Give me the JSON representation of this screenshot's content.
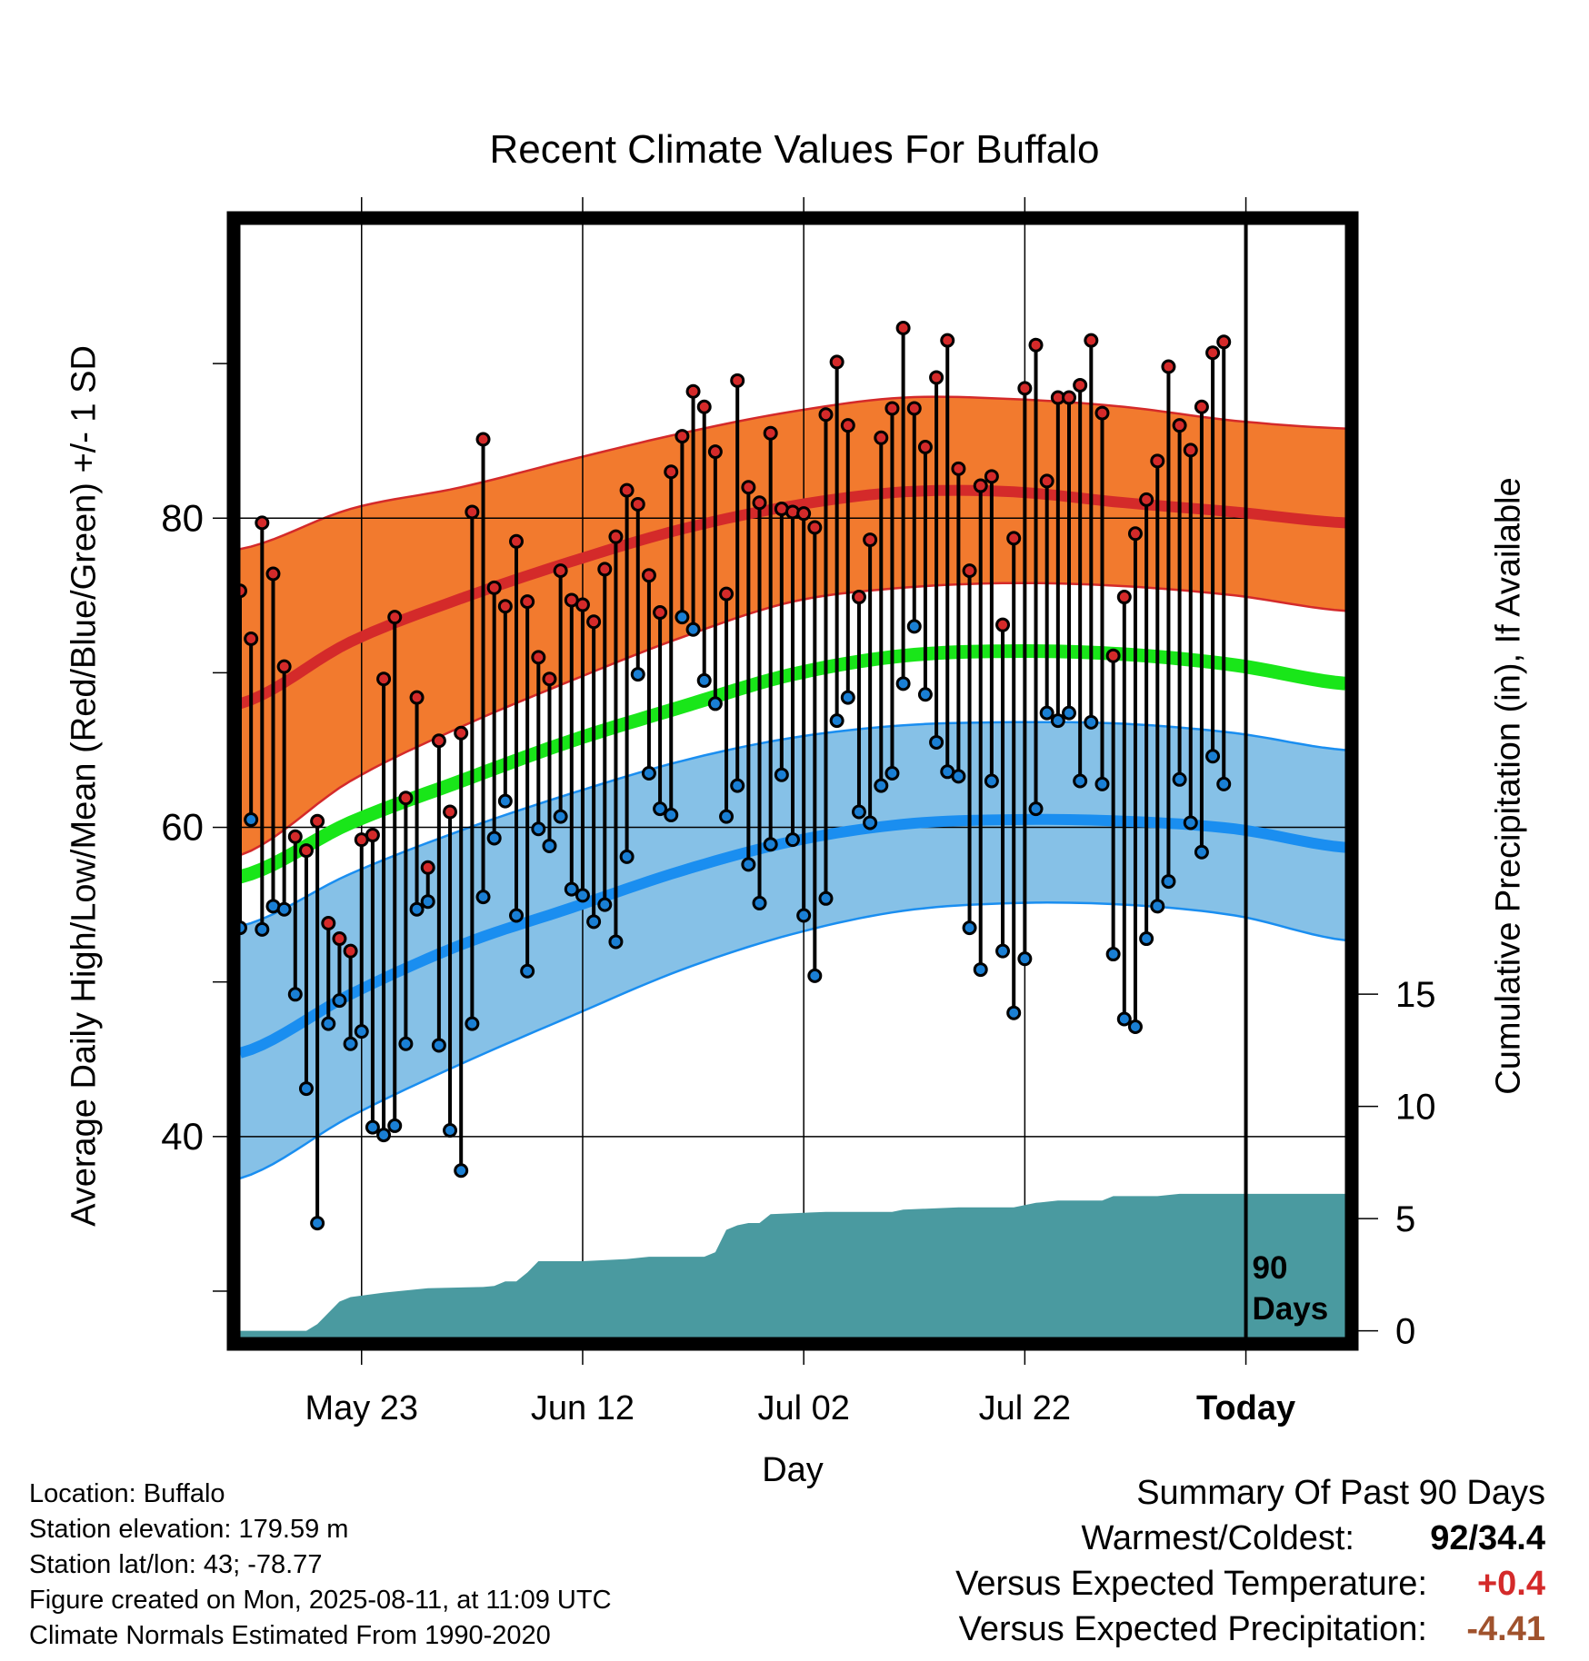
{
  "chart_data": {
    "type": "line",
    "title": "Recent Climate Values For Buffalo",
    "xlabel": "Day",
    "ylabel_left": "Average Daily High/Low/Mean (Red/Blue/Green) +/- 1 SD",
    "ylabel_right": "Cumulative Precipitation (in), If Available",
    "x_tick_labels": [
      "May 23",
      "Jun 12",
      "Jul 02",
      "Jul 22",
      "Today"
    ],
    "x_tick_days": [
      11,
      31,
      51,
      71,
      91
    ],
    "xlim_days": [
      0,
      100
    ],
    "ylim_left": [
      27,
      99
    ],
    "left_tick_labels": [
      "40",
      "60",
      "80"
    ],
    "left_tick_values": [
      40,
      60,
      80
    ],
    "ylim_right": [
      -0.3,
      49.3
    ],
    "right_tick_labels": [
      "0",
      "5",
      "10",
      "15"
    ],
    "right_tick_values": [
      0,
      5,
      10,
      15
    ],
    "today_marker": {
      "day": 91,
      "label_line1": "90",
      "label_line2": "Days"
    },
    "colors": {
      "high_band": "#f27a2e",
      "high_mean": "#d42a2a",
      "low_band": "#86c1e7",
      "low_mean": "#1a8ef0",
      "mean": "#19e619",
      "precip": "#4a9aa0",
      "high_dot": "#d42a2a",
      "low_dot": "#1a7fd4"
    },
    "normals": {
      "days": [
        0,
        10,
        20,
        30,
        40,
        50,
        60,
        70,
        80,
        90,
        100
      ],
      "high_mean": [
        68.0,
        72.0,
        74.8,
        77.2,
        79.3,
        80.8,
        81.7,
        81.7,
        81.0,
        80.4,
        79.7
      ],
      "high_upper": [
        78.0,
        80.6,
        82.0,
        83.8,
        85.5,
        86.9,
        87.8,
        87.7,
        87.2,
        86.3,
        85.8
      ],
      "high_lower": [
        58.2,
        63.0,
        66.5,
        69.5,
        72.3,
        74.6,
        75.5,
        75.8,
        75.6,
        75.0,
        74.0
      ],
      "mean": [
        56.8,
        60.3,
        63.0,
        65.6,
        67.8,
        69.9,
        71.1,
        71.4,
        71.2,
        70.5,
        69.3
      ],
      "low_mean": [
        45.4,
        49.2,
        52.4,
        54.8,
        57.2,
        59.1,
        60.2,
        60.5,
        60.4,
        59.9,
        58.7
      ],
      "low_upper": [
        53.6,
        57.0,
        59.8,
        62.2,
        64.3,
        65.8,
        66.6,
        66.8,
        66.7,
        66.1,
        65.0
      ],
      "low_lower": [
        37.3,
        41.3,
        44.7,
        47.8,
        50.8,
        53.1,
        54.6,
        55.1,
        55.0,
        54.3,
        52.7
      ]
    },
    "observed_days": [
      0,
      1,
      2,
      3,
      4,
      5,
      6,
      7,
      8,
      9,
      10,
      11,
      12,
      13,
      14,
      15,
      16,
      17,
      18,
      19,
      20,
      21,
      22,
      23,
      24,
      25,
      26,
      27,
      28,
      29,
      30,
      31,
      32,
      33,
      34,
      35,
      36,
      37,
      38,
      39,
      40,
      41,
      42,
      43,
      44,
      45,
      46,
      47,
      48,
      49,
      50,
      51,
      52,
      53,
      54,
      55,
      56,
      57,
      58,
      59,
      60,
      61,
      62,
      63,
      64,
      65,
      66,
      67,
      68,
      69,
      70,
      71,
      72,
      73,
      74,
      75,
      76,
      77,
      78,
      79,
      80,
      81,
      82,
      83,
      84,
      85,
      86,
      87,
      88,
      89,
      90
    ],
    "observed_high": [
      75.3,
      72.2,
      79.7,
      76.4,
      70.4,
      59.4,
      58.5,
      60.4,
      53.8,
      52.8,
      52.0,
      59.2,
      59.5,
      69.6,
      73.6,
      61.9,
      68.4,
      57.4,
      65.6,
      61.0,
      66.1,
      80.4,
      85.1,
      75.5,
      74.3,
      78.5,
      74.6,
      71.0,
      69.6,
      76.6,
      74.7,
      74.4,
      73.3,
      76.7,
      78.8,
      81.8,
      80.9,
      76.3,
      73.9,
      83.0,
      85.3,
      88.2,
      87.2,
      84.3,
      75.1,
      88.9,
      82.0,
      81.0,
      85.5,
      80.6,
      80.4,
      80.3,
      79.4,
      86.7,
      90.1,
      86.0,
      74.9,
      78.6,
      85.2,
      87.1,
      92.3,
      87.1,
      84.6,
      89.1,
      91.5,
      83.2,
      76.6,
      82.1,
      82.7,
      73.1,
      78.7,
      88.4,
      91.2,
      82.4,
      87.8,
      87.8,
      88.6,
      91.5,
      86.8,
      71.1,
      74.9,
      79.0,
      81.2,
      83.7,
      89.8,
      86.0,
      84.4,
      87.2,
      90.7,
      91.4
    ],
    "observed_low": [
      53.5,
      60.5,
      53.4,
      54.9,
      54.7,
      49.2,
      43.1,
      34.4,
      47.3,
      48.8,
      46.0,
      46.8,
      40.6,
      40.1,
      40.7,
      46.0,
      54.7,
      55.2,
      45.9,
      40.4,
      37.8,
      47.3,
      55.5,
      59.3,
      61.7,
      54.3,
      50.7,
      59.9,
      58.8,
      60.7,
      56.0,
      55.6,
      53.9,
      55.0,
      52.6,
      58.1,
      69.9,
      63.5,
      61.2,
      60.8,
      73.6,
      72.8,
      69.5,
      68.0,
      60.7,
      62.7,
      57.6,
      55.1,
      58.9,
      63.4,
      59.2,
      54.3,
      50.4,
      55.4,
      66.9,
      68.4,
      61.0,
      60.3,
      62.7,
      63.5,
      69.3,
      73.0,
      68.6,
      65.5,
      63.6,
      63.3,
      53.5,
      50.8,
      63.0,
      52.0,
      48.0,
      51.5,
      61.2,
      67.4,
      66.9,
      67.4,
      63.0,
      66.8,
      62.8,
      51.8,
      47.6,
      47.1,
      52.8,
      54.9,
      56.5,
      63.1,
      60.3,
      58.4,
      64.6,
      62.8
    ],
    "precipitation_cumulative": [
      [
        0,
        0
      ],
      [
        6,
        0
      ],
      [
        7,
        0.3
      ],
      [
        9,
        1.3
      ],
      [
        10,
        1.5
      ],
      [
        13,
        1.7
      ],
      [
        17,
        1.9
      ],
      [
        22,
        1.95
      ],
      [
        23,
        2.0
      ],
      [
        24,
        2.2
      ],
      [
        25,
        2.2
      ],
      [
        26,
        2.6
      ],
      [
        27,
        3.1
      ],
      [
        31,
        3.1
      ],
      [
        35,
        3.2
      ],
      [
        37,
        3.3
      ],
      [
        42,
        3.3
      ],
      [
        43,
        3.5
      ],
      [
        44,
        4.5
      ],
      [
        45,
        4.7
      ],
      [
        46,
        4.8
      ],
      [
        47,
        4.8
      ],
      [
        48,
        5.2
      ],
      [
        53,
        5.3
      ],
      [
        59,
        5.3
      ],
      [
        60,
        5.4
      ],
      [
        65,
        5.5
      ],
      [
        70,
        5.5
      ],
      [
        71,
        5.6
      ],
      [
        72,
        5.7
      ],
      [
        74,
        5.8
      ],
      [
        78,
        5.8
      ],
      [
        79,
        6.0
      ],
      [
        83,
        6.0
      ],
      [
        85,
        6.1
      ],
      [
        100,
        6.1
      ]
    ]
  },
  "footer": {
    "location": "Location: Buffalo",
    "elevation": "Station elevation: 179.59 m",
    "latlon": "Station lat/lon: 43; -78.77",
    "created": "Figure created on Mon, 2025-08-11, at 11:09 UTC",
    "normals": "Climate Normals Estimated From 1990-2020"
  },
  "summary": {
    "heading": "Summary Of Past 90 Days",
    "warm_cold_label": "Warmest/Coldest:",
    "warm_cold_value": "92/34.4",
    "temp_label": "Versus Expected Temperature:",
    "temp_value": "+0.4",
    "temp_color": "#d42a2a",
    "precip_label": "Versus Expected Precipitation:",
    "precip_value": "-4.41",
    "precip_color": "#a0522d"
  }
}
